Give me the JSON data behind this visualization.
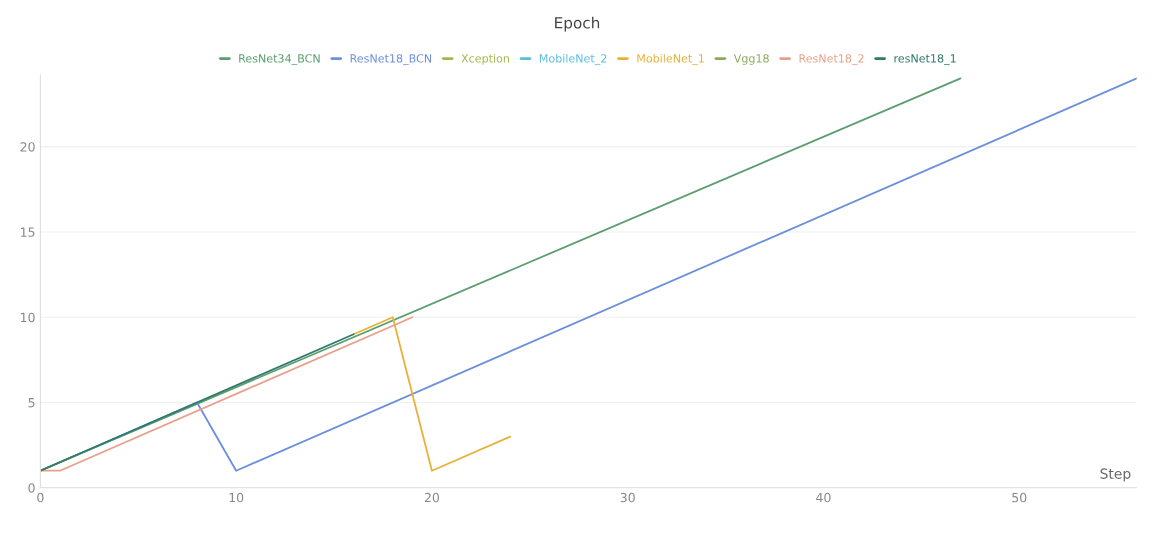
{
  "chart_data": {
    "type": "line",
    "title": "Epoch",
    "xlabel": "Step",
    "xlim": [
      0,
      56
    ],
    "xticks": [
      0,
      10,
      20,
      30,
      40,
      50
    ],
    "ylim": [
      0,
      24.2
    ],
    "yticks": [
      0,
      5,
      10,
      15,
      20
    ],
    "grid": "y",
    "legend": "top",
    "marker": "none",
    "line_style": "solid",
    "series": [
      {
        "name": "ResNet34_BCN",
        "color": "#5a9e6f",
        "x": [
          0,
          47
        ],
        "values": [
          1,
          24
        ]
      },
      {
        "name": "ResNet18_BCN",
        "color": "#6b8fdc",
        "x": [
          0,
          8,
          10,
          56
        ],
        "values": [
          1,
          5,
          1,
          24
        ]
      },
      {
        "name": "Xception",
        "color": "#a3b84c"
      },
      {
        "name": "MobileNet_2",
        "color": "#5bbde0"
      },
      {
        "name": "MobileNet_1",
        "color": "#e8b13a",
        "x": [
          16,
          18,
          20,
          24
        ],
        "values": [
          9,
          10,
          1,
          3
        ]
      },
      {
        "name": "Vgg18",
        "color": "#8aab5b",
        "x": [
          0,
          2
        ],
        "values": [
          1,
          2
        ]
      },
      {
        "name": "ResNet18_2",
        "color": "#e8a08a",
        "x": [
          0,
          1,
          19
        ],
        "values": [
          1,
          1,
          10
        ]
      },
      {
        "name": "resNet18_1",
        "color": "#2f7a6a",
        "x": [
          0,
          16
        ],
        "values": [
          1,
          9
        ]
      }
    ]
  }
}
